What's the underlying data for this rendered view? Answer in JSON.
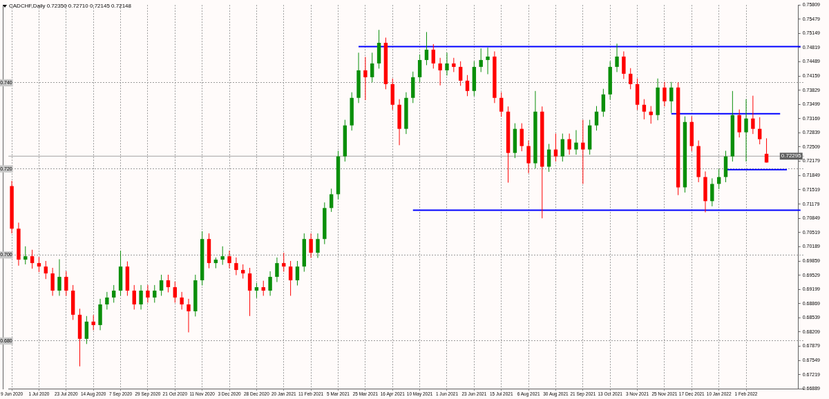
{
  "chart_data": {
    "type": "candlestick",
    "title": "CADCHF,Daily 0.72350 0.72710 0.72145 0.72148",
    "categories": [
      "9 Jun 2020",
      null,
      null,
      null,
      "1 Jul 2020",
      null,
      null,
      null,
      "23 Jul 2020",
      null,
      null,
      null,
      "14 Aug 2020",
      null,
      null,
      null,
      "7 Sep 2020",
      null,
      null,
      null,
      "29 Sep 2020",
      null,
      null,
      null,
      "21 Oct 2020",
      null,
      null,
      null,
      "11 Nov 2020",
      null,
      null,
      null,
      "3 Dec 2020",
      null,
      null,
      null,
      "28 Dec 2020",
      null,
      null,
      null,
      "20 Jan 2021",
      null,
      null,
      null,
      "11 Feb 2021",
      null,
      null,
      null,
      "5 Mar 2021",
      null,
      null,
      null,
      "25 Mar 2021",
      null,
      null,
      null,
      "16 Apr 2021",
      null,
      null,
      null,
      "10 May 2021",
      null,
      null,
      null,
      "1 Jun 2021",
      null,
      null,
      null,
      "23 Jun 2021",
      null,
      null,
      null,
      "15 Jul 2021",
      null,
      null,
      null,
      "6 Aug 2021",
      null,
      null,
      null,
      "30 Aug 2021",
      null,
      null,
      null,
      "21 Sep 2021",
      null,
      null,
      null,
      "13 Oct 2021",
      null,
      null,
      null,
      "3 Nov 2021",
      null,
      null,
      null,
      "25 Nov 2021",
      null,
      null,
      null,
      "17 Dec 2021",
      null,
      null,
      null,
      "10 Jan 2022",
      null,
      null,
      null,
      "1 Feb 2022",
      null,
      null,
      null,
      null,
      null,
      null,
      null,
      null
    ],
    "ohlc": [
      [
        0.716,
        0.7172,
        0.705,
        0.7061
      ],
      [
        0.7061,
        0.7075,
        0.6975,
        0.6989
      ],
      [
        0.6989,
        0.702,
        0.6978,
        0.6997
      ],
      [
        0.6997,
        0.7012,
        0.6968,
        0.6981
      ],
      [
        0.6981,
        0.6995,
        0.696,
        0.6973
      ],
      [
        0.6973,
        0.6986,
        0.6944,
        0.6957
      ],
      [
        0.6957,
        0.697,
        0.6905,
        0.6917
      ],
      [
        0.6917,
        0.699,
        0.6905,
        0.6949
      ],
      [
        0.6949,
        0.6962,
        0.6905,
        0.6917
      ],
      [
        0.6917,
        0.693,
        0.6849,
        0.6861
      ],
      [
        0.6861,
        0.6875,
        0.6741,
        0.6805
      ],
      [
        0.6805,
        0.6858,
        0.6793,
        0.6845
      ],
      [
        0.6845,
        0.686,
        0.6825,
        0.6837
      ],
      [
        0.6837,
        0.6898,
        0.6825,
        0.6885
      ],
      [
        0.6885,
        0.6914,
        0.6873,
        0.6901
      ],
      [
        0.6901,
        0.693,
        0.6889,
        0.6917
      ],
      [
        0.6917,
        0.701,
        0.6905,
        0.6973
      ],
      [
        0.6973,
        0.6985,
        0.6905,
        0.6917
      ],
      [
        0.6917,
        0.693,
        0.6873,
        0.6885
      ],
      [
        0.6885,
        0.693,
        0.6873,
        0.6917
      ],
      [
        0.6917,
        0.693,
        0.6889,
        0.6901
      ],
      [
        0.6901,
        0.693,
        0.6889,
        0.6917
      ],
      [
        0.6917,
        0.6954,
        0.6905,
        0.6941
      ],
      [
        0.6941,
        0.6954,
        0.6913,
        0.6925
      ],
      [
        0.6925,
        0.6938,
        0.6889,
        0.6901
      ],
      [
        0.6901,
        0.6914,
        0.6873,
        0.6885
      ],
      [
        0.6885,
        0.6898,
        0.682,
        0.6869
      ],
      [
        0.6869,
        0.6954,
        0.6857,
        0.6941
      ],
      [
        0.6941,
        0.7055,
        0.6929,
        0.7037
      ],
      [
        0.7037,
        0.705,
        0.6969,
        0.6981
      ],
      [
        0.6981,
        0.6994,
        0.6969,
        0.6989
      ],
      [
        0.6989,
        0.702,
        0.6977,
        0.6997
      ],
      [
        0.6997,
        0.701,
        0.6969,
        0.6981
      ],
      [
        0.6981,
        0.6994,
        0.6953,
        0.6965
      ],
      [
        0.6965,
        0.6978,
        0.6945,
        0.6957
      ],
      [
        0.6957,
        0.697,
        0.6858,
        0.6917
      ],
      [
        0.6917,
        0.6935,
        0.69,
        0.6925
      ],
      [
        0.6925,
        0.694,
        0.6905,
        0.6917
      ],
      [
        0.6917,
        0.6962,
        0.6905,
        0.6949
      ],
      [
        0.6949,
        0.6994,
        0.6937,
        0.6981
      ],
      [
        0.6981,
        0.7005,
        0.6961,
        0.6973
      ],
      [
        0.6973,
        0.6986,
        0.6905,
        0.6941
      ],
      [
        0.6941,
        0.6986,
        0.6929,
        0.6973
      ],
      [
        0.6973,
        0.705,
        0.6961,
        0.7037
      ],
      [
        0.7037,
        0.705,
        0.6993,
        0.7005
      ],
      [
        0.7005,
        0.705,
        0.6993,
        0.7037
      ],
      [
        0.7037,
        0.7122,
        0.7025,
        0.7109
      ],
      [
        0.7109,
        0.7154,
        0.71,
        0.7141
      ],
      [
        0.7141,
        0.7242,
        0.7129,
        0.7229
      ],
      [
        0.7229,
        0.7314,
        0.7217,
        0.7301
      ],
      [
        0.7301,
        0.7378,
        0.7289,
        0.7365
      ],
      [
        0.7365,
        0.747,
        0.7353,
        0.7429
      ],
      [
        0.7429,
        0.746,
        0.736,
        0.7413
      ],
      [
        0.7413,
        0.747,
        0.7401,
        0.7445
      ],
      [
        0.7445,
        0.7523,
        0.7433,
        0.7493
      ],
      [
        0.7493,
        0.7505,
        0.7385,
        0.7397
      ],
      [
        0.7397,
        0.741,
        0.7337,
        0.7349
      ],
      [
        0.7349,
        0.7362,
        0.7255,
        0.7293
      ],
      [
        0.7293,
        0.7378,
        0.7281,
        0.7365
      ],
      [
        0.7365,
        0.7426,
        0.7353,
        0.7413
      ],
      [
        0.7413,
        0.7466,
        0.7401,
        0.7453
      ],
      [
        0.7453,
        0.7518,
        0.7441,
        0.7477
      ],
      [
        0.7477,
        0.749,
        0.7433,
        0.7445
      ],
      [
        0.7445,
        0.7458,
        0.7394,
        0.7429
      ],
      [
        0.7429,
        0.747,
        0.7417,
        0.7445
      ],
      [
        0.7445,
        0.7458,
        0.7425,
        0.7437
      ],
      [
        0.7437,
        0.745,
        0.7393,
        0.7405
      ],
      [
        0.7405,
        0.7418,
        0.7369,
        0.7381
      ],
      [
        0.7381,
        0.745,
        0.7369,
        0.7437
      ],
      [
        0.7437,
        0.748,
        0.7425,
        0.7453
      ],
      [
        0.7453,
        0.7482,
        0.742,
        0.7461
      ],
      [
        0.7461,
        0.7473,
        0.7353,
        0.7365
      ],
      [
        0.7365,
        0.7378,
        0.7321,
        0.7333
      ],
      [
        0.7333,
        0.7345,
        0.7168,
        0.7237
      ],
      [
        0.7237,
        0.7306,
        0.7225,
        0.7293
      ],
      [
        0.7293,
        0.7306,
        0.7241,
        0.7253
      ],
      [
        0.7253,
        0.7266,
        0.719,
        0.7213
      ],
      [
        0.7213,
        0.7381,
        0.7201,
        0.7333
      ],
      [
        0.7333,
        0.7345,
        0.7085,
        0.7205
      ],
      [
        0.7205,
        0.7258,
        0.7193,
        0.7245
      ],
      [
        0.7245,
        0.7282,
        0.7217,
        0.7229
      ],
      [
        0.7229,
        0.7282,
        0.7217,
        0.7269
      ],
      [
        0.7269,
        0.7282,
        0.7233,
        0.7245
      ],
      [
        0.7245,
        0.729,
        0.7233,
        0.7261
      ],
      [
        0.7261,
        0.7314,
        0.7165,
        0.7245
      ],
      [
        0.7245,
        0.7314,
        0.7233,
        0.7301
      ],
      [
        0.7301,
        0.7346,
        0.7289,
        0.7333
      ],
      [
        0.7333,
        0.7386,
        0.7321,
        0.7373
      ],
      [
        0.7373,
        0.745,
        0.7361,
        0.7437
      ],
      [
        0.7437,
        0.7491,
        0.7425,
        0.7461
      ],
      [
        0.7461,
        0.7473,
        0.7409,
        0.7421
      ],
      [
        0.7421,
        0.7434,
        0.7385,
        0.7397
      ],
      [
        0.7397,
        0.741,
        0.7337,
        0.7349
      ],
      [
        0.7349,
        0.7362,
        0.7315,
        0.7333
      ],
      [
        0.7333,
        0.7346,
        0.7305,
        0.7325
      ],
      [
        0.7325,
        0.741,
        0.7313,
        0.7389
      ],
      [
        0.7389,
        0.7402,
        0.7345,
        0.7357
      ],
      [
        0.7357,
        0.7402,
        0.733,
        0.7389
      ],
      [
        0.7389,
        0.7401,
        0.7139,
        0.7157
      ],
      [
        0.7157,
        0.7322,
        0.7145,
        0.7309
      ],
      [
        0.7309,
        0.7322,
        0.7241,
        0.7253
      ],
      [
        0.7253,
        0.7266,
        0.7169,
        0.7181
      ],
      [
        0.7181,
        0.7194,
        0.7099,
        0.7125
      ],
      [
        0.7125,
        0.7178,
        0.7113,
        0.7165
      ],
      [
        0.7165,
        0.72,
        0.7153,
        0.7181
      ],
      [
        0.7181,
        0.7242,
        0.7169,
        0.7229
      ],
      [
        0.7229,
        0.7381,
        0.7217,
        0.7325
      ],
      [
        0.7325,
        0.7338,
        0.7273,
        0.7285
      ],
      [
        0.7285,
        0.7362,
        0.7217,
        0.7317
      ],
      [
        0.7317,
        0.737,
        0.7281,
        0.7293
      ],
      [
        0.7293,
        0.732,
        0.7257,
        0.7269
      ],
      [
        0.7235,
        0.7271,
        0.72145,
        0.72148
      ],
      null,
      null,
      null,
      null,
      null
    ],
    "colors": [
      "#ff0000",
      "#ff0000",
      "#0a8f0a",
      "#ff0000",
      "#ff0000",
      "#ff0000",
      "#ff0000",
      "#0a8f0a",
      "#ff0000",
      "#ff0000",
      "#ff0000",
      "#0a8f0a",
      "#ff0000",
      "#0a8f0a",
      "#0a8f0a",
      "#0a8f0a",
      "#0a8f0a",
      "#ff0000",
      "#ff0000",
      "#0a8f0a",
      "#ff0000",
      "#0a8f0a",
      "#0a8f0a",
      "#ff0000",
      "#ff0000",
      "#ff0000",
      "#ff0000",
      "#0a8f0a",
      "#0a8f0a",
      "#ff0000",
      "#0a8f0a",
      "#0a8f0a",
      "#ff0000",
      "#ff0000",
      "#ff0000",
      "#ff0000",
      "#0a8f0a",
      "#ff0000",
      "#0a8f0a",
      "#0a8f0a",
      "#ff0000",
      "#ff0000",
      "#0a8f0a",
      "#0a8f0a",
      "#ff0000",
      "#0a8f0a",
      "#0a8f0a",
      "#0a8f0a",
      "#0a8f0a",
      "#0a8f0a",
      "#0a8f0a",
      "#0a8f0a",
      "#ff0000",
      "#0a8f0a",
      "#0a8f0a",
      "#ff0000",
      "#ff0000",
      "#ff0000",
      "#0a8f0a",
      "#0a8f0a",
      "#0a8f0a",
      "#0a8f0a",
      "#ff0000",
      "#ff0000",
      "#0a8f0a",
      "#ff0000",
      "#ff0000",
      "#ff0000",
      "#0a8f0a",
      "#0a8f0a",
      "#0a8f0a",
      "#ff0000",
      "#ff0000",
      "#ff0000",
      "#0a8f0a",
      "#ff0000",
      "#ff0000",
      "#0a8f0a",
      "#ff0000",
      "#0a8f0a",
      "#ff0000",
      "#0a8f0a",
      "#ff0000",
      "#0a8f0a",
      "#ff0000",
      "#0a8f0a",
      "#0a8f0a",
      "#0a8f0a",
      "#0a8f0a",
      "#0a8f0a",
      "#ff0000",
      "#ff0000",
      "#ff0000",
      "#ff0000",
      "#ff0000",
      "#0a8f0a",
      "#ff0000",
      "#0a8f0a",
      "#ff0000",
      "#0a8f0a",
      "#ff0000",
      "#ff0000",
      "#ff0000",
      "#0a8f0a",
      "#0a8f0a",
      "#0a8f0a",
      "#0a8f0a",
      "#ff0000",
      "#0a8f0a",
      "#ff0000",
      "#ff0000",
      "#ff0000",
      null,
      null,
      null,
      null,
      null
    ],
    "series": [
      {
        "type": "line",
        "color": "#0000ff",
        "values": [
          null,
          null,
          null,
          null,
          null,
          null,
          null,
          null,
          null,
          null,
          null,
          null,
          null,
          null,
          null,
          null,
          null,
          null,
          null,
          null,
          null,
          null,
          null,
          null,
          null,
          null,
          null,
          null,
          null,
          null,
          null,
          null,
          null,
          null,
          null,
          null,
          null,
          null,
          null,
          null,
          null,
          null,
          null,
          null,
          null,
          null,
          null,
          null,
          null,
          null,
          null,
          0.7484,
          0.7484,
          0.7484,
          0.7484,
          0.7484,
          0.7484,
          0.7484,
          0.7484,
          0.7484,
          0.7484,
          0.7484,
          0.7484,
          0.7484,
          0.7484,
          0.7484,
          0.7484,
          0.7484,
          0.7484,
          0.7484,
          0.7484,
          0.7484,
          0.7484,
          0.7484,
          0.7484,
          0.7484,
          0.7484,
          0.7484,
          0.7484,
          0.7484,
          0.7484,
          0.7484,
          0.7484,
          0.7484,
          0.7484,
          0.7484,
          0.7484,
          0.7484,
          0.7484,
          0.7484,
          0.7484,
          0.7484,
          0.7484,
          0.7484,
          0.7484,
          0.7484,
          0.7484,
          0.7484,
          0.7484,
          0.7484,
          0.7484,
          0.7484,
          0.7484,
          0.7484,
          0.7484,
          0.7484,
          0.7484,
          0.7484,
          0.7484,
          0.7484,
          0.7484,
          0.7484,
          0.7484,
          0.7484,
          0.7484,
          0.7484,
          0.7484
        ]
      },
      {
        "type": "line",
        "color": "#0000ff",
        "values": [
          null,
          null,
          null,
          null,
          null,
          null,
          null,
          null,
          null,
          null,
          null,
          null,
          null,
          null,
          null,
          null,
          null,
          null,
          null,
          null,
          null,
          null,
          null,
          null,
          null,
          null,
          null,
          null,
          null,
          null,
          null,
          null,
          null,
          null,
          null,
          null,
          null,
          null,
          null,
          null,
          null,
          null,
          null,
          null,
          null,
          null,
          null,
          null,
          null,
          null,
          null,
          null,
          null,
          null,
          null,
          null,
          null,
          null,
          null,
          0.7104,
          0.7104,
          0.7104,
          0.7104,
          0.7104,
          0.7104,
          0.7104,
          0.7104,
          0.7104,
          0.7104,
          0.7104,
          0.7104,
          0.7104,
          0.7104,
          0.7104,
          0.7104,
          0.7104,
          0.7104,
          0.7104,
          0.7104,
          0.7104,
          0.7104,
          0.7104,
          0.7104,
          0.7104,
          0.7104,
          0.7104,
          0.7104,
          0.7104,
          0.7104,
          0.7104,
          0.7104,
          0.7104,
          0.7104,
          0.7104,
          0.7104,
          0.7104,
          0.7104,
          0.7104,
          0.7104,
          0.7104,
          0.7104,
          0.7104,
          0.7104,
          0.7104,
          0.7104,
          0.7104,
          0.7104,
          0.7104,
          0.7104,
          0.7104,
          0.7104,
          0.7104,
          0.7104,
          0.7104,
          0.7104,
          0.7104,
          0.7104
        ]
      },
      {
        "type": "line",
        "color": "#0000ff",
        "values": [
          null,
          null,
          null,
          null,
          null,
          null,
          null,
          null,
          null,
          null,
          null,
          null,
          null,
          null,
          null,
          null,
          null,
          null,
          null,
          null,
          null,
          null,
          null,
          null,
          null,
          null,
          null,
          null,
          null,
          null,
          null,
          null,
          null,
          null,
          null,
          null,
          null,
          null,
          null,
          null,
          null,
          null,
          null,
          null,
          null,
          null,
          null,
          null,
          null,
          null,
          null,
          null,
          null,
          null,
          null,
          null,
          null,
          null,
          null,
          null,
          null,
          null,
          null,
          null,
          null,
          null,
          null,
          null,
          null,
          null,
          null,
          null,
          null,
          null,
          null,
          null,
          null,
          null,
          null,
          null,
          null,
          null,
          null,
          null,
          null,
          null,
          null,
          null,
          null,
          null,
          null,
          null,
          null,
          null,
          null,
          null,
          null,
          0.7328,
          0.7328,
          0.7328,
          0.7328,
          0.7328,
          0.7328,
          0.7328,
          0.7328,
          0.7328,
          0.7328,
          0.7328,
          0.7328,
          0.7328,
          0.7328,
          0.7328,
          0.7328,
          0.7328,
          null,
          null,
          null
        ]
      },
      {
        "type": "line",
        "color": "#0000ff",
        "values": [
          null,
          null,
          null,
          null,
          null,
          null,
          null,
          null,
          null,
          null,
          null,
          null,
          null,
          null,
          null,
          null,
          null,
          null,
          null,
          null,
          null,
          null,
          null,
          null,
          null,
          null,
          null,
          null,
          null,
          null,
          null,
          null,
          null,
          null,
          null,
          null,
          null,
          null,
          null,
          null,
          null,
          null,
          null,
          null,
          null,
          null,
          null,
          null,
          null,
          null,
          null,
          null,
          null,
          null,
          null,
          null,
          null,
          null,
          null,
          null,
          null,
          null,
          null,
          null,
          null,
          null,
          null,
          null,
          null,
          null,
          null,
          null,
          null,
          null,
          null,
          null,
          null,
          null,
          null,
          null,
          null,
          null,
          null,
          null,
          null,
          null,
          null,
          null,
          null,
          null,
          null,
          null,
          null,
          null,
          null,
          null,
          null,
          null,
          null,
          null,
          null,
          null,
          null,
          null,
          null,
          0.7198,
          0.7198,
          0.7198,
          0.7198,
          0.7198,
          0.7198,
          0.7198,
          0.7198,
          0.7198,
          0.7198,
          null,
          null
        ]
      }
    ],
    "ylim": [
      0.66889,
      0.75809
    ],
    "yticks": [
      {
        "value": 0.68,
        "label": "0.680"
      },
      {
        "value": 0.7,
        "label": "0.700"
      },
      {
        "value": 0.72,
        "label": "0.720"
      },
      {
        "value": 0.74,
        "label": "0.740"
      }
    ],
    "y2lim": [
      0.66889,
      0.75809
    ],
    "y2ticks": [
      0.75809,
      0.75479,
      0.75149,
      0.74819,
      0.74489,
      0.74159,
      0.73829,
      0.73499,
      0.73169,
      0.72839,
      0.72509,
      0.72179,
      0.71849,
      0.71519,
      0.71179,
      0.70849,
      0.70519,
      0.70189,
      0.69859,
      0.69529,
      0.69199,
      0.68869,
      0.68539,
      0.68209,
      0.67879,
      0.67549,
      0.67219,
      0.66889
    ],
    "ref_lines": [
      {
        "axis": "y2",
        "value": 0.72295,
        "label": "0.72295",
        "color": "#a0a0a0"
      }
    ],
    "grid": true
  }
}
